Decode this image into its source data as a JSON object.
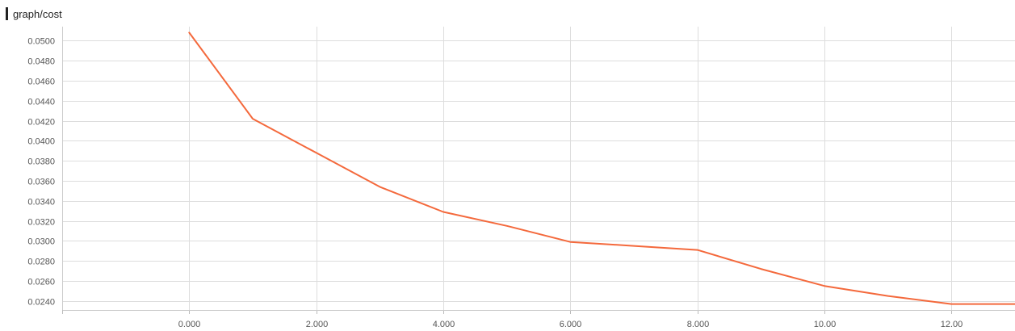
{
  "chart_data": {
    "type": "line",
    "title": "graph/cost",
    "xlabel": "",
    "ylabel": "",
    "x_tick_labels": [
      "0.000",
      "2.000",
      "4.000",
      "6.000",
      "8.000",
      "10.00",
      "12.00"
    ],
    "x_ticks": [
      0,
      2,
      4,
      6,
      8,
      10,
      12
    ],
    "y_tick_labels": [
      "0.0240",
      "0.0260",
      "0.0280",
      "0.0300",
      "0.0320",
      "0.0340",
      "0.0360",
      "0.0380",
      "0.0400",
      "0.0420",
      "0.0440",
      "0.0460",
      "0.0480",
      "0.0500"
    ],
    "y_ticks": [
      0.024,
      0.026,
      0.028,
      0.03,
      0.032,
      0.034,
      0.036,
      0.038,
      0.04,
      0.042,
      0.044,
      0.046,
      0.048,
      0.05
    ],
    "xlim": [
      -2,
      13
    ],
    "ylim": [
      0.0231,
      0.0514
    ],
    "grid": true,
    "series": [
      {
        "color": "#f4693c",
        "x": [
          0,
          1,
          2,
          3,
          4,
          5,
          6,
          7,
          8,
          9,
          10,
          11,
          12,
          13
        ],
        "y": [
          0.0508,
          0.0422,
          0.0388,
          0.0354,
          0.0329,
          0.0315,
          0.0299,
          0.0295,
          0.0291,
          0.0272,
          0.0255,
          0.0245,
          0.0237,
          0.0237
        ]
      }
    ]
  }
}
